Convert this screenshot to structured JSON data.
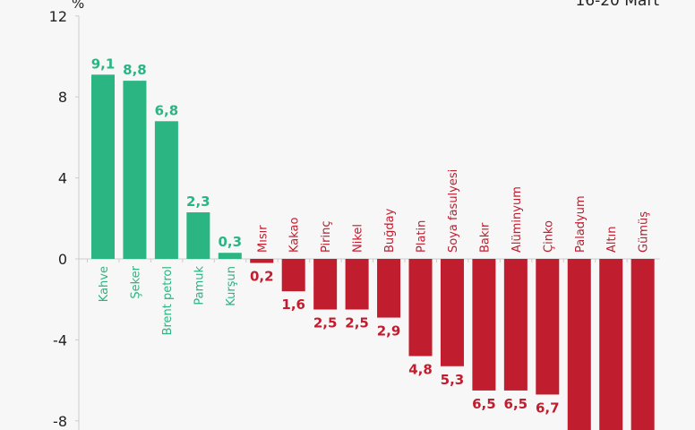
{
  "header": {
    "date_range": "16-20 Mart"
  },
  "chart_data": {
    "type": "bar",
    "title": "",
    "xlabel": "",
    "ylabel": "%",
    "ylim": [
      -8.5,
      12
    ],
    "yticks": [
      12,
      8,
      4,
      0,
      -4,
      -8
    ],
    "ytick_labels": [
      "12",
      "8",
      "4",
      "0",
      "-4",
      "-8"
    ],
    "grid": false,
    "categories": [
      "Kahve",
      "Şeker",
      "Brent petrol",
      "Pamuk",
      "Kurşun",
      "Mısır",
      "Kakao",
      "Pirinç",
      "Nikel",
      "Buğday",
      "Platin",
      "Soya fasulyesi",
      "Bakır",
      "Alüminyum",
      "Çinko",
      "Paladyum",
      "Altın",
      "Gümüş"
    ],
    "values": [
      9.1,
      8.8,
      6.8,
      2.3,
      0.3,
      -0.2,
      -1.6,
      -2.5,
      -2.5,
      -2.9,
      -4.8,
      -5.3,
      -6.5,
      -6.5,
      -6.7,
      null,
      null,
      null
    ],
    "value_labels": [
      "9,1",
      "8,8",
      "6,8",
      "2,3",
      "0,3",
      "0,2",
      "1,6",
      "2,5",
      "2,5",
      "2,9",
      "4,8",
      "5,3",
      "6,5",
      "6,5",
      "6,7",
      "",
      "",
      ""
    ],
    "colors": {
      "positive": "#2bb582",
      "negative": "#c01d2e",
      "axis": "#cccccc",
      "text": "#222222"
    }
  }
}
